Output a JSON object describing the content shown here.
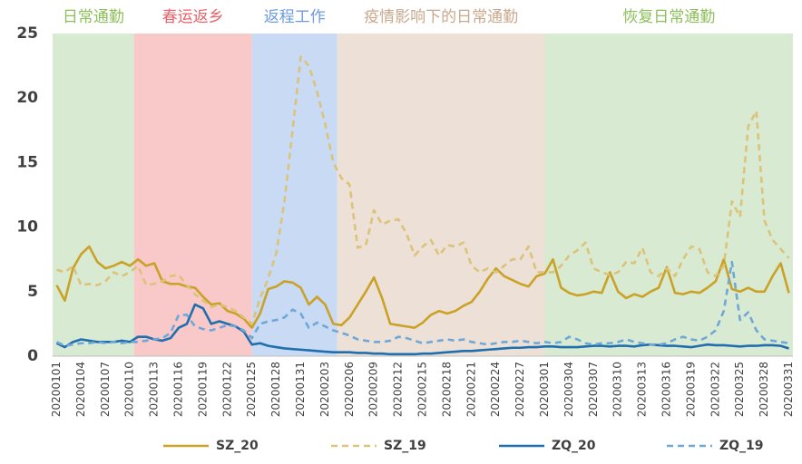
{
  "chart_data": {
    "type": "line",
    "categories": [
      "20200101",
      null,
      null,
      "20200104",
      null,
      null,
      "20200107",
      null,
      null,
      "20200110",
      null,
      null,
      "20200113",
      null,
      null,
      "20200116",
      null,
      null,
      "20200119",
      null,
      null,
      "20200122",
      null,
      null,
      "20200125",
      null,
      null,
      "20200128",
      null,
      null,
      "20200131",
      null,
      null,
      "20200203",
      null,
      null,
      "20200206",
      null,
      null,
      "20200209",
      null,
      null,
      "20200212",
      null,
      null,
      "20200215",
      null,
      null,
      "20200218",
      null,
      null,
      "20200221",
      null,
      null,
      "20200224",
      null,
      null,
      "20200227",
      null,
      null,
      "20200301",
      null,
      null,
      "20200304",
      null,
      null,
      "20200307",
      null,
      null,
      "20200310",
      null,
      null,
      "20200313",
      null,
      null,
      "20200316",
      null,
      null,
      "20200319",
      null,
      null,
      "20200322",
      null,
      null,
      "20200325",
      null,
      null,
      "20200328",
      null,
      null,
      "20200331"
    ],
    "series": [
      {
        "name": "SZ_20",
        "color": "#c9a227",
        "dash": false,
        "values": [
          5.5,
          4.3,
          6.8,
          7.9,
          8.5,
          7.3,
          6.8,
          7.0,
          7.3,
          7.0,
          7.5,
          7.0,
          7.2,
          5.8,
          5.6,
          5.6,
          5.4,
          5.3,
          4.6,
          4.0,
          4.1,
          3.5,
          3.3,
          2.9,
          2.2,
          3.3,
          5.2,
          5.4,
          5.8,
          5.7,
          5.3,
          4.0,
          4.6,
          4.0,
          2.5,
          2.4,
          3.0,
          4.0,
          5.0,
          6.1,
          4.5,
          2.5,
          2.4,
          2.3,
          2.2,
          2.6,
          3.2,
          3.5,
          3.3,
          3.5,
          3.9,
          4.2,
          5.0,
          6.0,
          6.8,
          6.2,
          5.9,
          5.6,
          5.4,
          6.2,
          6.4,
          7.5,
          5.3,
          4.9,
          4.7,
          4.8,
          5.0,
          4.9,
          6.5,
          5.0,
          4.5,
          4.8,
          4.6,
          5.0,
          5.3,
          6.9,
          4.9,
          4.8,
          5.0,
          4.9,
          5.3,
          5.8,
          7.5,
          5.2,
          5.0,
          5.3,
          5.0,
          5.0,
          6.2,
          7.2,
          4.9
        ]
      },
      {
        "name": "SZ_19",
        "color": "#dcc37a",
        "dash": true,
        "values": [
          6.7,
          6.5,
          7.0,
          5.5,
          5.6,
          5.5,
          5.8,
          6.5,
          6.2,
          6.5,
          7.0,
          5.5,
          5.6,
          5.8,
          6.2,
          6.3,
          5.5,
          4.8,
          4.3,
          3.8,
          4.0,
          3.8,
          3.5,
          3.0,
          2.5,
          4.5,
          6.0,
          8.0,
          12.0,
          17.5,
          23.2,
          22.5,
          20.5,
          18.0,
          15.0,
          13.8,
          13.3,
          8.4,
          8.6,
          11.3,
          10.2,
          10.5,
          10.6,
          9.5,
          7.8,
          8.5,
          9.0,
          7.8,
          8.6,
          8.5,
          8.8,
          7.0,
          6.5,
          6.8,
          6.5,
          7.0,
          7.5,
          7.5,
          8.5,
          6.5,
          6.5,
          6.5,
          7.0,
          7.8,
          8.2,
          8.8,
          6.8,
          6.5,
          6.3,
          6.5,
          7.3,
          7.2,
          8.4,
          6.5,
          6.2,
          6.8,
          6.2,
          7.5,
          8.5,
          8.3,
          6.5,
          6.2,
          7.0,
          12.0,
          10.8,
          17.8,
          19.0,
          10.5,
          9.0,
          8.3,
          7.6
        ]
      },
      {
        "name": "ZQ_20",
        "color": "#1f6fae",
        "dash": false,
        "values": [
          1.0,
          0.7,
          1.1,
          1.3,
          1.2,
          1.1,
          1.1,
          1.1,
          1.2,
          1.1,
          1.5,
          1.5,
          1.3,
          1.2,
          1.4,
          2.2,
          2.5,
          4.0,
          3.7,
          2.5,
          2.7,
          2.5,
          2.3,
          1.9,
          0.9,
          1.0,
          0.8,
          0.7,
          0.6,
          0.55,
          0.5,
          0.45,
          0.4,
          0.35,
          0.3,
          0.3,
          0.3,
          0.25,
          0.25,
          0.2,
          0.2,
          0.15,
          0.15,
          0.15,
          0.15,
          0.2,
          0.2,
          0.25,
          0.3,
          0.35,
          0.4,
          0.4,
          0.45,
          0.5,
          0.55,
          0.6,
          0.65,
          0.65,
          0.7,
          0.7,
          0.75,
          0.75,
          0.7,
          0.7,
          0.7,
          0.75,
          0.8,
          0.8,
          0.75,
          0.8,
          0.8,
          0.75,
          0.85,
          0.9,
          0.85,
          0.8,
          0.8,
          0.75,
          0.7,
          0.8,
          0.9,
          0.85,
          0.85,
          0.8,
          0.75,
          0.8,
          0.8,
          0.85,
          0.85,
          0.8,
          0.6
        ]
      },
      {
        "name": "ZQ_19",
        "color": "#6fa8d6",
        "dash": true,
        "values": [
          1.1,
          0.8,
          0.9,
          1.0,
          1.0,
          1.1,
          1.0,
          1.1,
          1.0,
          1.1,
          1.1,
          1.2,
          1.3,
          1.4,
          1.8,
          3.2,
          3.2,
          2.3,
          2.1,
          2.0,
          2.2,
          2.4,
          2.3,
          2.0,
          1.4,
          2.5,
          2.7,
          2.8,
          3.0,
          3.6,
          3.3,
          2.2,
          2.6,
          2.3,
          2.0,
          1.8,
          1.6,
          1.3,
          1.2,
          1.1,
          1.1,
          1.2,
          1.5,
          1.4,
          1.2,
          1.0,
          1.1,
          1.2,
          1.3,
          1.2,
          1.3,
          1.1,
          1.0,
          0.9,
          1.0,
          1.1,
          1.1,
          1.2,
          1.1,
          1.0,
          1.1,
          1.0,
          1.1,
          1.5,
          1.3,
          1.0,
          0.9,
          1.0,
          1.0,
          1.1,
          1.3,
          1.1,
          1.0,
          0.9,
          0.9,
          1.0,
          1.3,
          1.5,
          1.3,
          1.2,
          1.5,
          2.0,
          3.5,
          7.3,
          2.8,
          3.4,
          2.0,
          1.3,
          1.2,
          1.1,
          1.0
        ]
      }
    ],
    "regions": [
      {
        "label": "日常通勤",
        "start": -0.5,
        "end": 9.5,
        "color": "#d9ead3",
        "label_color": "#8dbf5a"
      },
      {
        "label": "春运返乡",
        "start": 9.5,
        "end": 24,
        "color": "#f9c8c8",
        "label_color": "#e8636b"
      },
      {
        "label": "返程工作",
        "start": 24,
        "end": 34.5,
        "color": "#c8daf4",
        "label_color": "#6d9be0"
      },
      {
        "label": "疫情影响下的日常通勤",
        "start": 34.5,
        "end": 60,
        "color": "#ede0d6",
        "label_color": "#c9a88c"
      },
      {
        "label": "恢复日常通勤",
        "start": 60,
        "end": 90.5,
        "color": "#d9ead3",
        "label_color": "#8dbf5a"
      }
    ],
    "ylim": [
      0,
      25
    ],
    "yticks": [
      0,
      5,
      10,
      15,
      20,
      25
    ],
    "grid": false,
    "legend": "bottom"
  }
}
